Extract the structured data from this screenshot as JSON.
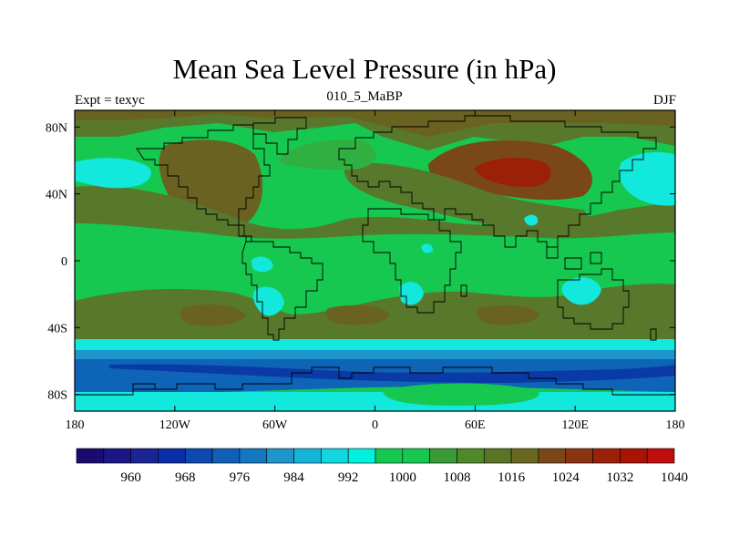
{
  "title": "Mean Sea Level Pressure (in hPa)",
  "left_label": "Expt = texyc",
  "center_label": "010_5_MaBP",
  "right_label": "DJF",
  "lat_ticks": [
    {
      "value": 80,
      "label": "80N"
    },
    {
      "value": 40,
      "label": "40N"
    },
    {
      "value": 0,
      "label": "0"
    },
    {
      "value": -40,
      "label": "40S"
    },
    {
      "value": -80,
      "label": "80S"
    }
  ],
  "lon_ticks": [
    {
      "value": -180,
      "label": "180"
    },
    {
      "value": -120,
      "label": "120W"
    },
    {
      "value": -60,
      "label": "60W"
    },
    {
      "value": 0,
      "label": "0"
    },
    {
      "value": 60,
      "label": "60E"
    },
    {
      "value": 120,
      "label": "120E"
    },
    {
      "value": 180,
      "label": "180"
    }
  ],
  "colorbar": {
    "levels": [
      956,
      960,
      964,
      968,
      972,
      976,
      980,
      984,
      988,
      992,
      996,
      1000,
      1004,
      1008,
      1012,
      1016,
      1020,
      1024,
      1028,
      1032,
      1036,
      1040
    ],
    "labeled": [
      "960",
      "968",
      "976",
      "984",
      "992",
      "1000",
      "1008",
      "1016",
      "1024",
      "1032",
      "1040"
    ],
    "colors": [
      "#1a0b6e",
      "#1c1585",
      "#1a2495",
      "#0a2ea6",
      "#0d49b0",
      "#1060b8",
      "#1478c0",
      "#1e96cc",
      "#16b4d8",
      "#11d8de",
      "#00f0e0",
      "#14c850",
      "#16c850",
      "#3a9a36",
      "#4e8a28",
      "#5a7424",
      "#6a6820",
      "#7a4818",
      "#8a3410",
      "#9a2008",
      "#aa1204",
      "#c00c0c"
    ]
  },
  "map_colors": {
    "cyan": "#12e8dc",
    "green": "#16c850",
    "light_green": "#30b040",
    "olive": "#58782c",
    "dark_olive": "#6a6220",
    "brown": "#7a4818",
    "dark_red": "#9a2008",
    "blue": "#0e64b6",
    "mid_blue": "#1e96cc",
    "deep_blue": "#0a3aa6"
  }
}
